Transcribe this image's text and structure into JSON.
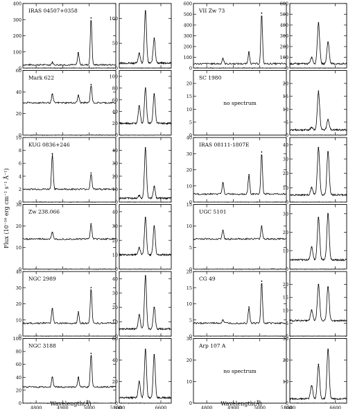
{
  "figure": {
    "ylabel": "Flux (10⁻¹⁶ erg cm⁻² s⁻¹ Å⁻¹)",
    "xlabel_left": "Wavelength(Å)",
    "xlabel_right": "Wavelength(Å)",
    "no_spectrum_text": "no spectrum"
  },
  "chart_data": [
    {
      "type": "line",
      "title": "IRAS 04507+0358",
      "ylim": [
        0,
        400
      ],
      "yticks": [
        0,
        100,
        200,
        300,
        400
      ],
      "xlim": [
        4750,
        5100
      ],
      "baseline": 20,
      "lines": [
        [
          4861,
          35
        ],
        [
          4959,
          95
        ],
        [
          5007,
          310
        ]
      ],
      "zoom": {
        "ylim": [
          0,
          130
        ],
        "yticks": [
          0,
          50,
          100
        ],
        "baseline": 10,
        "lines": [
          [
            6548,
            30
          ],
          [
            6563,
            115
          ],
          [
            6584,
            60
          ]
        ]
      }
    },
    {
      "type": "line",
      "title": "VII Zw 73",
      "ylim": [
        0,
        600
      ],
      "yticks": [
        0,
        100,
        200,
        300,
        400,
        500,
        600
      ],
      "xlim": [
        4750,
        5100
      ],
      "baseline": 40,
      "lines": [
        [
          4861,
          90
        ],
        [
          4959,
          150
        ],
        [
          5007,
          510
        ]
      ],
      "zoom": {
        "ylim": [
          0,
          600
        ],
        "yticks": [
          0,
          100,
          200,
          300,
          400,
          500,
          600
        ],
        "baseline": 40,
        "lines": [
          [
            6548,
            100
          ],
          [
            6563,
            420
          ],
          [
            6584,
            240
          ]
        ]
      }
    },
    {
      "type": "line",
      "title": "Mark 622",
      "ylim": [
        0,
        60
      ],
      "yticks": [
        0,
        20,
        40,
        60
      ],
      "xlim": [
        4750,
        5100
      ],
      "baseline": 30,
      "lines": [
        [
          4861,
          38
        ],
        [
          4959,
          37
        ],
        [
          5007,
          47
        ]
      ],
      "zoom": {
        "ylim": [
          0,
          110
        ],
        "yticks": [
          0,
          20,
          40,
          60,
          80,
          100
        ],
        "baseline": 20,
        "lines": [
          [
            6548,
            50
          ],
          [
            6563,
            80
          ],
          [
            6584,
            70
          ]
        ]
      }
    },
    {
      "type": "line",
      "title": "SC 1980",
      "no_spectrum": true,
      "ylim": [
        0,
        25
      ],
      "yticks": [
        0,
        5,
        10,
        15,
        20
      ],
      "zoom": {
        "ylim": [
          0,
          25
        ],
        "yticks": [
          0,
          5,
          10,
          15,
          20
        ],
        "baseline": 2,
        "lines": [
          [
            6548,
            3
          ],
          [
            6563,
            17
          ],
          [
            6584,
            6
          ]
        ]
      }
    },
    {
      "type": "line",
      "title": "KUG 0836+246",
      "ylim": [
        0,
        10
      ],
      "yticks": [
        0,
        2,
        4,
        6,
        8,
        10
      ],
      "xlim": [
        4750,
        5100
      ],
      "baseline": 2,
      "lines": [
        [
          4861,
          7.5
        ],
        [
          5007,
          4.5
        ]
      ],
      "zoom": {
        "ylim": [
          0,
          50
        ],
        "yticks": [
          0,
          10,
          20,
          30,
          40
        ],
        "baseline": 3,
        "lines": [
          [
            6548,
            5
          ],
          [
            6563,
            42
          ],
          [
            6584,
            12
          ]
        ]
      }
    },
    {
      "type": "line",
      "title": "IRAS 08111-1807E",
      "ylim": [
        0,
        40
      ],
      "yticks": [
        0,
        10,
        20,
        30,
        40
      ],
      "xlim": [
        4750,
        5100
      ],
      "baseline": 5,
      "lines": [
        [
          4861,
          12
        ],
        [
          4959,
          17
        ],
        [
          5007,
          31
        ]
      ],
      "zoom": {
        "ylim": [
          0,
          45
        ],
        "yticks": [
          0,
          10,
          20,
          30,
          40
        ],
        "baseline": 5,
        "lines": [
          [
            6548,
            10
          ],
          [
            6563,
            38
          ],
          [
            6584,
            35
          ]
        ]
      }
    },
    {
      "type": "line",
      "title": "Zw 238.066",
      "ylim": [
        0,
        30
      ],
      "yticks": [
        0,
        10,
        20,
        30
      ],
      "xlim": [
        4750,
        5100
      ],
      "baseline": 14,
      "lines": [
        [
          4861,
          17
        ],
        [
          5007,
          21
        ]
      ],
      "zoom": {
        "ylim": [
          0,
          45
        ],
        "yticks": [
          0,
          10,
          20,
          30,
          40
        ],
        "baseline": 10,
        "lines": [
          [
            6548,
            15
          ],
          [
            6563,
            36
          ],
          [
            6584,
            30
          ]
        ]
      }
    },
    {
      "type": "line",
      "title": "UGC 5101",
      "ylim": [
        0,
        15
      ],
      "yticks": [
        0,
        5,
        10,
        15
      ],
      "xlim": [
        4750,
        5100
      ],
      "baseline": 7,
      "lines": [
        [
          4861,
          9
        ],
        [
          5007,
          10
        ]
      ],
      "zoom": {
        "ylim": [
          0,
          35
        ],
        "yticks": [
          0,
          10,
          20,
          30
        ],
        "baseline": 5,
        "lines": [
          [
            6548,
            12
          ],
          [
            6563,
            28
          ],
          [
            6584,
            30
          ]
        ]
      }
    },
    {
      "type": "line",
      "title": "NGC 2989",
      "ylim": [
        0,
        40
      ],
      "yticks": [
        0,
        10,
        20,
        30,
        40
      ],
      "xlim": [
        4750,
        5100
      ],
      "baseline": 8,
      "lines": [
        [
          4861,
          17
        ],
        [
          4959,
          15
        ],
        [
          5007,
          30
        ]
      ],
      "zoom": {
        "ylim": [
          0,
          45
        ],
        "yticks": [
          0,
          10,
          20,
          30,
          40
        ],
        "baseline": 5,
        "lines": [
          [
            6548,
            15
          ],
          [
            6563,
            42
          ],
          [
            6584,
            20
          ]
        ]
      }
    },
    {
      "type": "line",
      "title": "CG 49",
      "ylim": [
        0,
        20
      ],
      "yticks": [
        0,
        5,
        10,
        15,
        20
      ],
      "xlim": [
        4750,
        5100
      ],
      "baseline": 4,
      "lines": [
        [
          4861,
          5
        ],
        [
          4959,
          9
        ],
        [
          5007,
          17
        ]
      ],
      "zoom": {
        "ylim": [
          0,
          25
        ],
        "yticks": [
          0,
          5,
          10,
          15,
          20
        ],
        "baseline": 6,
        "lines": [
          [
            6548,
            10
          ],
          [
            6563,
            20
          ],
          [
            6584,
            19
          ]
        ]
      }
    },
    {
      "type": "line",
      "title": "NGC 3188",
      "ylim": [
        0,
        100
      ],
      "yticks": [
        0,
        20,
        40,
        60,
        80,
        100
      ],
      "xlim": [
        4750,
        5100
      ],
      "baseline": 25,
      "lines": [
        [
          4861,
          40
        ],
        [
          4959,
          40
        ],
        [
          5007,
          77
        ]
      ],
      "zoom": {
        "ylim": [
          0,
          60
        ],
        "yticks": [
          0,
          20,
          40,
          60
        ],
        "baseline": 5,
        "lines": [
          [
            6548,
            20
          ],
          [
            6563,
            50
          ],
          [
            6584,
            45
          ]
        ]
      }
    },
    {
      "type": "line",
      "title": "Arp 107 A",
      "no_spectrum": true,
      "ylim": [
        0,
        30
      ],
      "yticks": [
        0,
        10,
        20,
        30
      ],
      "zoom": {
        "ylim": [
          0,
          30
        ],
        "yticks": [
          0,
          10,
          20,
          30
        ],
        "baseline": 2,
        "lines": [
          [
            6548,
            8
          ],
          [
            6563,
            18
          ],
          [
            6584,
            25
          ]
        ]
      }
    }
  ],
  "axes": {
    "left_xticks": [
      4800,
      4900,
      5000,
      5100
    ],
    "right_xticks": [
      6500,
      6600
    ]
  }
}
